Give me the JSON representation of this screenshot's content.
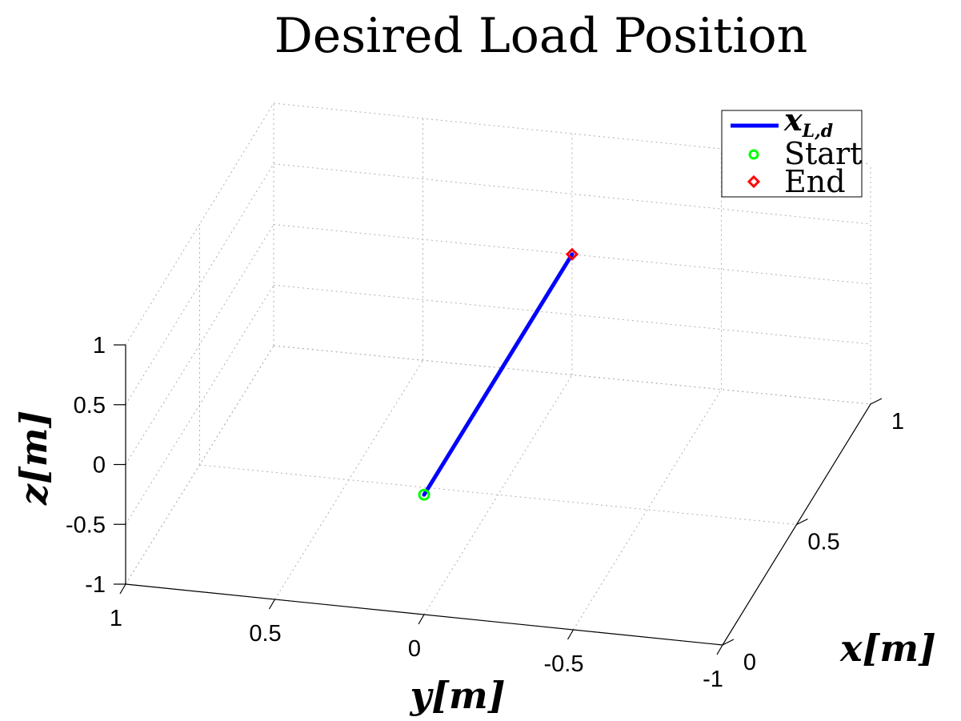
{
  "chart_data": {
    "type": "line",
    "title": "Desired Load Position",
    "xlabel": "x[m]",
    "ylabel": "y[m]",
    "zlabel": "z[m]",
    "xlim": [
      0,
      1
    ],
    "ylim": [
      -1,
      1
    ],
    "zlim": [
      -1,
      1
    ],
    "xticks": [
      "0",
      "0.5",
      "1"
    ],
    "yticks": [
      "1",
      "0.5",
      "0",
      "-0.5",
      "-1"
    ],
    "zticks": [
      "1",
      "0.5",
      "0",
      "-0.5",
      "-1"
    ],
    "grid": true,
    "legend_position": "top-right",
    "series": [
      {
        "name": "x_{L,d}",
        "color": "#0000ff",
        "x": [
          0,
          1
        ],
        "y": [
          0,
          0
        ],
        "z": [
          0,
          0
        ]
      }
    ],
    "markers": [
      {
        "name": "Start",
        "shape": "circle",
        "color": "#00ff00",
        "x": 0,
        "y": 0,
        "z": 0
      },
      {
        "name": "End",
        "shape": "diamond",
        "color": "#ff0000",
        "x": 1,
        "y": 0,
        "z": 0
      }
    ],
    "legend": [
      {
        "label_main": "x",
        "label_sub": "L,d",
        "kind": "line",
        "color": "#0000ff"
      },
      {
        "label": "Start",
        "kind": "circle",
        "color": "#00ff00"
      },
      {
        "label": "End",
        "kind": "diamond",
        "color": "#ff0000"
      }
    ]
  }
}
